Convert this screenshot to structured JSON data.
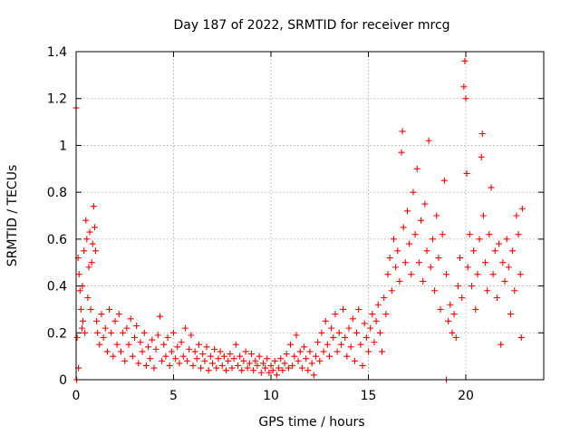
{
  "chart_data": {
    "type": "scatter",
    "title": "Day 187 of 2022, SRMTID for receiver mrcg",
    "xlabel": "GPS time / hours",
    "ylabel": "SRMTID / TECUs",
    "xlim": [
      0,
      24
    ],
    "ylim": [
      0,
      1.4
    ],
    "grid": true,
    "x_ticks": [
      0,
      5,
      10,
      15,
      20
    ],
    "y_ticks": [
      0,
      0.2,
      0.4,
      0.6,
      0.8,
      1.0,
      1.2,
      1.4
    ],
    "x_tick_labels": [
      "0",
      "5",
      "10",
      "15",
      "20"
    ],
    "y_tick_labels": [
      "0",
      "0.2",
      "0.4",
      "0.6",
      "0.8",
      "1",
      "1.2",
      "1.4"
    ],
    "marker": "+",
    "marker_color": "#ff0000",
    "series": [
      {
        "name": "SRMTID",
        "points": [
          [
            0.0,
            1.16
          ],
          [
            0.02,
            0.0
          ],
          [
            0.05,
            0.18
          ],
          [
            0.1,
            0.52
          ],
          [
            0.12,
            0.05
          ],
          [
            0.15,
            0.45
          ],
          [
            0.2,
            0.38
          ],
          [
            0.25,
            0.3
          ],
          [
            0.3,
            0.22
          ],
          [
            0.32,
            0.4
          ],
          [
            0.35,
            0.25
          ],
          [
            0.4,
            0.55
          ],
          [
            0.45,
            0.2
          ],
          [
            0.5,
            0.68
          ],
          [
            0.55,
            0.6
          ],
          [
            0.6,
            0.35
          ],
          [
            0.65,
            0.48
          ],
          [
            0.7,
            0.63
          ],
          [
            0.75,
            0.3
          ],
          [
            0.8,
            0.5
          ],
          [
            0.85,
            0.58
          ],
          [
            0.9,
            0.74
          ],
          [
            0.95,
            0.65
          ],
          [
            1.0,
            0.55
          ],
          [
            1.05,
            0.25
          ],
          [
            1.1,
            0.2
          ],
          [
            1.2,
            0.15
          ],
          [
            1.3,
            0.28
          ],
          [
            1.4,
            0.18
          ],
          [
            1.5,
            0.22
          ],
          [
            1.6,
            0.12
          ],
          [
            1.7,
            0.3
          ],
          [
            1.8,
            0.2
          ],
          [
            1.9,
            0.1
          ],
          [
            2.0,
            0.25
          ],
          [
            2.1,
            0.15
          ],
          [
            2.2,
            0.28
          ],
          [
            2.3,
            0.12
          ],
          [
            2.4,
            0.2
          ],
          [
            2.5,
            0.08
          ],
          [
            2.6,
            0.22
          ],
          [
            2.7,
            0.15
          ],
          [
            2.8,
            0.26
          ],
          [
            2.9,
            0.1
          ],
          [
            3.0,
            0.18
          ],
          [
            3.1,
            0.23
          ],
          [
            3.2,
            0.07
          ],
          [
            3.3,
            0.16
          ],
          [
            3.4,
            0.12
          ],
          [
            3.5,
            0.2
          ],
          [
            3.6,
            0.06
          ],
          [
            3.7,
            0.14
          ],
          [
            3.8,
            0.09
          ],
          [
            3.9,
            0.17
          ],
          [
            4.0,
            0.05
          ],
          [
            4.1,
            0.13
          ],
          [
            4.2,
            0.19
          ],
          [
            4.3,
            0.27
          ],
          [
            4.4,
            0.08
          ],
          [
            4.5,
            0.15
          ],
          [
            4.6,
            0.1
          ],
          [
            4.7,
            0.18
          ],
          [
            4.8,
            0.06
          ],
          [
            4.9,
            0.12
          ],
          [
            5.0,
            0.2
          ],
          [
            5.1,
            0.09
          ],
          [
            5.2,
            0.14
          ],
          [
            5.3,
            0.07
          ],
          [
            5.4,
            0.16
          ],
          [
            5.5,
            0.1
          ],
          [
            5.6,
            0.22
          ],
          [
            5.7,
            0.08
          ],
          [
            5.8,
            0.13
          ],
          [
            5.9,
            0.19
          ],
          [
            6.0,
            0.06
          ],
          [
            6.1,
            0.12
          ],
          [
            6.2,
            0.09
          ],
          [
            6.3,
            0.15
          ],
          [
            6.4,
            0.05
          ],
          [
            6.5,
            0.11
          ],
          [
            6.6,
            0.08
          ],
          [
            6.7,
            0.14
          ],
          [
            6.8,
            0.04
          ],
          [
            6.9,
            0.1
          ],
          [
            7.0,
            0.07
          ],
          [
            7.1,
            0.13
          ],
          [
            7.2,
            0.05
          ],
          [
            7.3,
            0.09
          ],
          [
            7.4,
            0.12
          ],
          [
            7.5,
            0.06
          ],
          [
            7.6,
            0.1
          ],
          [
            7.7,
            0.04
          ],
          [
            7.8,
            0.08
          ],
          [
            7.9,
            0.11
          ],
          [
            8.0,
            0.05
          ],
          [
            8.1,
            0.09
          ],
          [
            8.2,
            0.15
          ],
          [
            8.3,
            0.06
          ],
          [
            8.4,
            0.1
          ],
          [
            8.5,
            0.04
          ],
          [
            8.6,
            0.08
          ],
          [
            8.7,
            0.12
          ],
          [
            8.8,
            0.05
          ],
          [
            8.9,
            0.07
          ],
          [
            9.0,
            0.11
          ],
          [
            9.1,
            0.04
          ],
          [
            9.2,
            0.08
          ],
          [
            9.3,
            0.06
          ],
          [
            9.4,
            0.1
          ],
          [
            9.5,
            0.03
          ],
          [
            9.6,
            0.07
          ],
          [
            9.7,
            0.05
          ],
          [
            9.8,
            0.09
          ],
          [
            9.9,
            0.03
          ],
          [
            10.0,
            0.06
          ],
          [
            10.1,
            0.04
          ],
          [
            10.2,
            0.08
          ],
          [
            10.3,
            0.02
          ],
          [
            10.4,
            0.05
          ],
          [
            10.5,
            0.09
          ],
          [
            10.6,
            0.04
          ],
          [
            10.7,
            0.07
          ],
          [
            10.8,
            0.11
          ],
          [
            10.9,
            0.05
          ],
          [
            11.0,
            0.15
          ],
          [
            11.1,
            0.06
          ],
          [
            11.2,
            0.1
          ],
          [
            11.3,
            0.19
          ],
          [
            11.4,
            0.08
          ],
          [
            11.5,
            0.12
          ],
          [
            11.6,
            0.05
          ],
          [
            11.7,
            0.14
          ],
          [
            11.8,
            0.09
          ],
          [
            11.9,
            0.04
          ],
          [
            12.0,
            0.12
          ],
          [
            12.1,
            0.07
          ],
          [
            12.2,
            0.02
          ],
          [
            12.3,
            0.1
          ],
          [
            12.4,
            0.16
          ],
          [
            12.5,
            0.08
          ],
          [
            12.6,
            0.2
          ],
          [
            12.7,
            0.12
          ],
          [
            12.8,
            0.25
          ],
          [
            12.9,
            0.15
          ],
          [
            13.0,
            0.1
          ],
          [
            13.1,
            0.22
          ],
          [
            13.2,
            0.18
          ],
          [
            13.3,
            0.28
          ],
          [
            13.4,
            0.12
          ],
          [
            13.5,
            0.2
          ],
          [
            13.6,
            0.15
          ],
          [
            13.7,
            0.3
          ],
          [
            13.8,
            0.18
          ],
          [
            13.9,
            0.1
          ],
          [
            14.0,
            0.22
          ],
          [
            14.1,
            0.14
          ],
          [
            14.2,
            0.26
          ],
          [
            14.3,
            0.08
          ],
          [
            14.4,
            0.2
          ],
          [
            14.5,
            0.3
          ],
          [
            14.6,
            0.15
          ],
          [
            14.7,
            0.06
          ],
          [
            14.8,
            0.24
          ],
          [
            14.9,
            0.18
          ],
          [
            15.0,
            0.12
          ],
          [
            15.1,
            0.22
          ],
          [
            15.2,
            0.28
          ],
          [
            15.3,
            0.16
          ],
          [
            15.4,
            0.25
          ],
          [
            15.5,
            0.32
          ],
          [
            15.6,
            0.2
          ],
          [
            15.7,
            0.12
          ],
          [
            15.8,
            0.35
          ],
          [
            15.9,
            0.28
          ],
          [
            16.0,
            0.45
          ],
          [
            16.1,
            0.52
          ],
          [
            16.2,
            0.38
          ],
          [
            16.3,
            0.6
          ],
          [
            16.4,
            0.48
          ],
          [
            16.5,
            0.55
          ],
          [
            16.6,
            0.42
          ],
          [
            16.7,
            0.97
          ],
          [
            16.75,
            1.06
          ],
          [
            16.8,
            0.65
          ],
          [
            16.9,
            0.5
          ],
          [
            17.0,
            0.72
          ],
          [
            17.1,
            0.58
          ],
          [
            17.2,
            0.45
          ],
          [
            17.3,
            0.8
          ],
          [
            17.4,
            0.62
          ],
          [
            17.5,
            0.9
          ],
          [
            17.6,
            0.5
          ],
          [
            17.7,
            0.68
          ],
          [
            17.8,
            0.42
          ],
          [
            17.9,
            0.75
          ],
          [
            18.0,
            0.55
          ],
          [
            18.1,
            1.02
          ],
          [
            18.2,
            0.48
          ],
          [
            18.3,
            0.6
          ],
          [
            18.4,
            0.38
          ],
          [
            18.5,
            0.7
          ],
          [
            18.6,
            0.52
          ],
          [
            18.7,
            0.3
          ],
          [
            18.8,
            0.62
          ],
          [
            18.9,
            0.85
          ],
          [
            19.0,
            0.45
          ],
          [
            19.1,
            0.25
          ],
          [
            19.2,
            0.32
          ],
          [
            19.3,
            0.2
          ],
          [
            19.4,
            0.28
          ],
          [
            19.5,
            0.18
          ],
          [
            19.6,
            0.4
          ],
          [
            19.7,
            0.52
          ],
          [
            19.8,
            0.35
          ],
          [
            19.9,
            1.25
          ],
          [
            19.95,
            1.36
          ],
          [
            20.0,
            1.2
          ],
          [
            20.05,
            0.88
          ],
          [
            20.1,
            0.48
          ],
          [
            20.2,
            0.62
          ],
          [
            20.3,
            0.4
          ],
          [
            20.4,
            0.55
          ],
          [
            20.5,
            0.3
          ],
          [
            20.6,
            0.45
          ],
          [
            20.7,
            0.6
          ],
          [
            20.8,
            0.95
          ],
          [
            20.85,
            1.05
          ],
          [
            20.9,
            0.7
          ],
          [
            21.0,
            0.5
          ],
          [
            21.1,
            0.38
          ],
          [
            21.2,
            0.62
          ],
          [
            21.3,
            0.82
          ],
          [
            21.4,
            0.45
          ],
          [
            21.5,
            0.55
          ],
          [
            21.6,
            0.35
          ],
          [
            21.7,
            0.58
          ],
          [
            21.8,
            0.15
          ],
          [
            21.9,
            0.5
          ],
          [
            22.0,
            0.42
          ],
          [
            22.1,
            0.6
          ],
          [
            22.2,
            0.48
          ],
          [
            22.3,
            0.28
          ],
          [
            22.4,
            0.55
          ],
          [
            22.5,
            0.38
          ],
          [
            22.6,
            0.7
          ],
          [
            22.7,
            0.62
          ],
          [
            22.8,
            0.45
          ],
          [
            22.85,
            0.18
          ],
          [
            22.9,
            0.73
          ],
          [
            19.0,
            0.0
          ],
          [
            0.03,
            0.0
          ]
        ]
      }
    ]
  }
}
